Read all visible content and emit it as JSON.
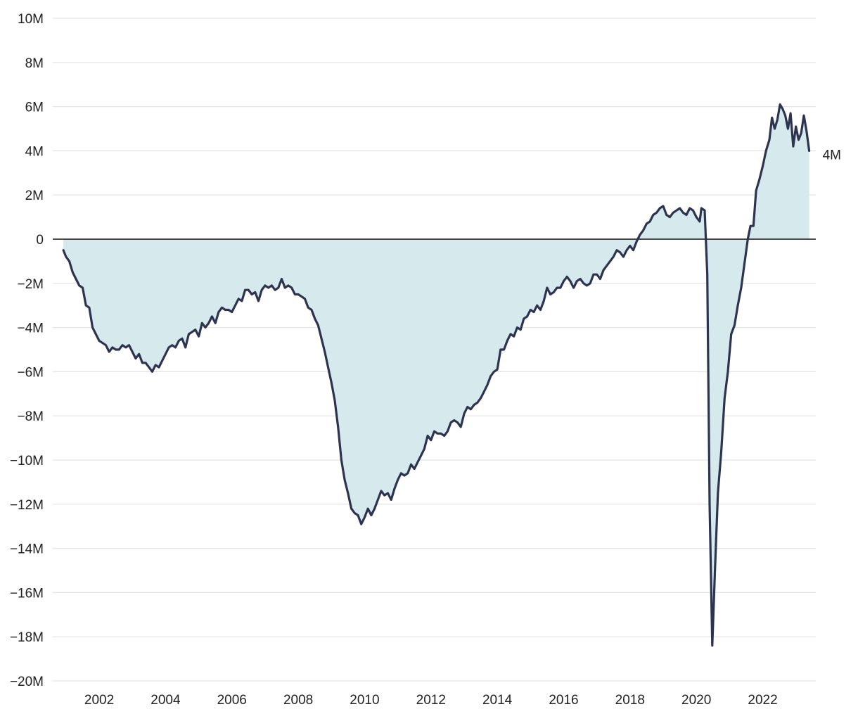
{
  "chart_data": {
    "type": "area",
    "title": "",
    "xlabel": "",
    "ylabel": "",
    "xlim": [
      2000.6,
      2023.6
    ],
    "ylim": [
      -20,
      10
    ],
    "grid": true,
    "legend": "none",
    "y_ticks": [
      {
        "value": 10,
        "label": "10M"
      },
      {
        "value": 8,
        "label": "8M"
      },
      {
        "value": 6,
        "label": "6M"
      },
      {
        "value": 4,
        "label": "4M"
      },
      {
        "value": 2,
        "label": "2M"
      },
      {
        "value": 0,
        "label": "0"
      },
      {
        "value": -2,
        "label": "−2M"
      },
      {
        "value": -4,
        "label": "−4M"
      },
      {
        "value": -6,
        "label": "−6M"
      },
      {
        "value": -8,
        "label": "−8M"
      },
      {
        "value": -10,
        "label": "−10M"
      },
      {
        "value": -12,
        "label": "−12M"
      },
      {
        "value": -14,
        "label": "−14M"
      },
      {
        "value": -16,
        "label": "−16M"
      },
      {
        "value": -18,
        "label": "−18M"
      },
      {
        "value": -20,
        "label": "−20M"
      }
    ],
    "x_ticks": [
      {
        "value": 2002,
        "label": "2002"
      },
      {
        "value": 2004,
        "label": "2004"
      },
      {
        "value": 2006,
        "label": "2006"
      },
      {
        "value": 2008,
        "label": "2008"
      },
      {
        "value": 2010,
        "label": "2010"
      },
      {
        "value": 2012,
        "label": "2012"
      },
      {
        "value": 2014,
        "label": "2014"
      },
      {
        "value": 2016,
        "label": "2016"
      },
      {
        "value": 2018,
        "label": "2018"
      },
      {
        "value": 2020,
        "label": "2020"
      },
      {
        "value": 2022,
        "label": "2022"
      }
    ],
    "end_label": "4M",
    "colors": {
      "line": "#2d3450",
      "fill": "#d6e9ec",
      "grid": "#e3e3e3",
      "zero_line": "#111111"
    },
    "series": [
      {
        "points": [
          [
            2000.92,
            -0.5
          ],
          [
            2001.0,
            -0.8
          ],
          [
            2001.1,
            -1.0
          ],
          [
            2001.2,
            -1.5
          ],
          [
            2001.3,
            -1.8
          ],
          [
            2001.4,
            -2.1
          ],
          [
            2001.5,
            -2.2
          ],
          [
            2001.6,
            -3.0
          ],
          [
            2001.7,
            -3.1
          ],
          [
            2001.8,
            -4.0
          ],
          [
            2001.9,
            -4.3
          ],
          [
            2002.0,
            -4.6
          ],
          [
            2002.1,
            -4.7
          ],
          [
            2002.2,
            -4.8
          ],
          [
            2002.3,
            -5.1
          ],
          [
            2002.4,
            -4.9
          ],
          [
            2002.5,
            -5.0
          ],
          [
            2002.6,
            -5.0
          ],
          [
            2002.7,
            -4.8
          ],
          [
            2002.8,
            -4.9
          ],
          [
            2002.9,
            -4.8
          ],
          [
            2003.0,
            -5.1
          ],
          [
            2003.1,
            -5.4
          ],
          [
            2003.2,
            -5.2
          ],
          [
            2003.3,
            -5.6
          ],
          [
            2003.4,
            -5.6
          ],
          [
            2003.5,
            -5.8
          ],
          [
            2003.6,
            -6.0
          ],
          [
            2003.7,
            -5.7
          ],
          [
            2003.8,
            -5.8
          ],
          [
            2003.9,
            -5.5
          ],
          [
            2004.0,
            -5.2
          ],
          [
            2004.1,
            -4.9
          ],
          [
            2004.2,
            -4.8
          ],
          [
            2004.3,
            -4.9
          ],
          [
            2004.4,
            -4.6
          ],
          [
            2004.5,
            -4.5
          ],
          [
            2004.6,
            -4.9
          ],
          [
            2004.7,
            -4.3
          ],
          [
            2004.8,
            -4.2
          ],
          [
            2004.9,
            -4.1
          ],
          [
            2005.0,
            -4.4
          ],
          [
            2005.1,
            -3.8
          ],
          [
            2005.2,
            -4.0
          ],
          [
            2005.3,
            -3.8
          ],
          [
            2005.4,
            -3.5
          ],
          [
            2005.5,
            -3.8
          ],
          [
            2005.6,
            -3.3
          ],
          [
            2005.7,
            -3.1
          ],
          [
            2005.8,
            -3.2
          ],
          [
            2005.9,
            -3.2
          ],
          [
            2006.0,
            -3.3
          ],
          [
            2006.1,
            -3.0
          ],
          [
            2006.2,
            -2.7
          ],
          [
            2006.3,
            -2.8
          ],
          [
            2006.4,
            -2.3
          ],
          [
            2006.5,
            -2.3
          ],
          [
            2006.6,
            -2.5
          ],
          [
            2006.7,
            -2.4
          ],
          [
            2006.8,
            -2.8
          ],
          [
            2006.9,
            -2.3
          ],
          [
            2007.0,
            -2.1
          ],
          [
            2007.1,
            -2.2
          ],
          [
            2007.2,
            -2.1
          ],
          [
            2007.3,
            -2.3
          ],
          [
            2007.4,
            -2.2
          ],
          [
            2007.5,
            -1.8
          ],
          [
            2007.6,
            -2.2
          ],
          [
            2007.7,
            -2.1
          ],
          [
            2007.8,
            -2.2
          ],
          [
            2007.9,
            -2.5
          ],
          [
            2008.0,
            -2.5
          ],
          [
            2008.1,
            -2.6
          ],
          [
            2008.2,
            -2.7
          ],
          [
            2008.3,
            -3.1
          ],
          [
            2008.4,
            -3.2
          ],
          [
            2008.5,
            -3.6
          ],
          [
            2008.6,
            -3.9
          ],
          [
            2008.7,
            -4.5
          ],
          [
            2008.8,
            -5.1
          ],
          [
            2008.9,
            -5.8
          ],
          [
            2009.0,
            -6.5
          ],
          [
            2009.1,
            -7.3
          ],
          [
            2009.2,
            -8.5
          ],
          [
            2009.3,
            -10.0
          ],
          [
            2009.4,
            -10.9
          ],
          [
            2009.5,
            -11.5
          ],
          [
            2009.6,
            -12.2
          ],
          [
            2009.7,
            -12.4
          ],
          [
            2009.8,
            -12.5
          ],
          [
            2009.9,
            -12.9
          ],
          [
            2010.0,
            -12.6
          ],
          [
            2010.1,
            -12.2
          ],
          [
            2010.2,
            -12.5
          ],
          [
            2010.3,
            -12.2
          ],
          [
            2010.4,
            -11.8
          ],
          [
            2010.5,
            -11.4
          ],
          [
            2010.6,
            -11.6
          ],
          [
            2010.7,
            -11.5
          ],
          [
            2010.8,
            -11.8
          ],
          [
            2010.9,
            -11.3
          ],
          [
            2011.0,
            -10.9
          ],
          [
            2011.1,
            -10.6
          ],
          [
            2011.2,
            -10.7
          ],
          [
            2011.3,
            -10.6
          ],
          [
            2011.4,
            -10.2
          ],
          [
            2011.5,
            -10.4
          ],
          [
            2011.6,
            -10.1
          ],
          [
            2011.7,
            -9.8
          ],
          [
            2011.8,
            -9.5
          ],
          [
            2011.9,
            -8.9
          ],
          [
            2012.0,
            -9.1
          ],
          [
            2012.1,
            -8.7
          ],
          [
            2012.2,
            -8.8
          ],
          [
            2012.3,
            -8.8
          ],
          [
            2012.4,
            -8.9
          ],
          [
            2012.5,
            -8.7
          ],
          [
            2012.6,
            -8.3
          ],
          [
            2012.7,
            -8.2
          ],
          [
            2012.8,
            -8.3
          ],
          [
            2012.9,
            -8.5
          ],
          [
            2013.0,
            -7.9
          ],
          [
            2013.1,
            -7.6
          ],
          [
            2013.2,
            -7.7
          ],
          [
            2013.3,
            -7.5
          ],
          [
            2013.4,
            -7.4
          ],
          [
            2013.5,
            -7.2
          ],
          [
            2013.6,
            -6.9
          ],
          [
            2013.7,
            -6.6
          ],
          [
            2013.8,
            -6.2
          ],
          [
            2013.9,
            -6.0
          ],
          [
            2014.0,
            -5.9
          ],
          [
            2014.1,
            -5.0
          ],
          [
            2014.2,
            -5.0
          ],
          [
            2014.3,
            -4.6
          ],
          [
            2014.4,
            -4.3
          ],
          [
            2014.5,
            -4.4
          ],
          [
            2014.6,
            -4.0
          ],
          [
            2014.7,
            -4.1
          ],
          [
            2014.8,
            -3.6
          ],
          [
            2014.9,
            -3.5
          ],
          [
            2015.0,
            -3.2
          ],
          [
            2015.1,
            -3.3
          ],
          [
            2015.2,
            -3.0
          ],
          [
            2015.3,
            -3.2
          ],
          [
            2015.4,
            -2.8
          ],
          [
            2015.5,
            -2.2
          ],
          [
            2015.6,
            -2.5
          ],
          [
            2015.7,
            -2.4
          ],
          [
            2015.8,
            -2.2
          ],
          [
            2015.9,
            -2.2
          ],
          [
            2016.0,
            -1.9
          ],
          [
            2016.1,
            -1.7
          ],
          [
            2016.2,
            -1.9
          ],
          [
            2016.3,
            -2.2
          ],
          [
            2016.4,
            -1.9
          ],
          [
            2016.5,
            -1.8
          ],
          [
            2016.6,
            -2.0
          ],
          [
            2016.7,
            -2.1
          ],
          [
            2016.8,
            -2.0
          ],
          [
            2016.9,
            -1.6
          ],
          [
            2017.0,
            -1.6
          ],
          [
            2017.1,
            -1.8
          ],
          [
            2017.2,
            -1.4
          ],
          [
            2017.3,
            -1.2
          ],
          [
            2017.4,
            -1.0
          ],
          [
            2017.5,
            -0.8
          ],
          [
            2017.6,
            -0.5
          ],
          [
            2017.7,
            -0.6
          ],
          [
            2017.8,
            -0.8
          ],
          [
            2017.9,
            -0.5
          ],
          [
            2018.0,
            -0.3
          ],
          [
            2018.1,
            -0.5
          ],
          [
            2018.2,
            -0.1
          ],
          [
            2018.3,
            0.2
          ],
          [
            2018.4,
            0.4
          ],
          [
            2018.5,
            0.7
          ],
          [
            2018.6,
            0.8
          ],
          [
            2018.7,
            1.1
          ],
          [
            2018.8,
            1.2
          ],
          [
            2018.9,
            1.4
          ],
          [
            2019.0,
            1.5
          ],
          [
            2019.1,
            1.1
          ],
          [
            2019.2,
            1.0
          ],
          [
            2019.3,
            1.2
          ],
          [
            2019.4,
            1.3
          ],
          [
            2019.5,
            1.4
          ],
          [
            2019.6,
            1.2
          ],
          [
            2019.7,
            1.1
          ],
          [
            2019.8,
            1.4
          ],
          [
            2019.9,
            1.3
          ],
          [
            2020.0,
            1.0
          ],
          [
            2020.1,
            0.8
          ],
          [
            2020.15,
            1.4
          ],
          [
            2020.25,
            1.3
          ],
          [
            2020.33,
            -1.6
          ],
          [
            2020.4,
            -12.0
          ],
          [
            2020.48,
            -18.4
          ],
          [
            2020.56,
            -15.0
          ],
          [
            2020.65,
            -11.5
          ],
          [
            2020.75,
            -9.6
          ],
          [
            2020.85,
            -7.2
          ],
          [
            2020.95,
            -6.0
          ],
          [
            2021.05,
            -4.3
          ],
          [
            2021.15,
            -3.9
          ],
          [
            2021.25,
            -3.0
          ],
          [
            2021.35,
            -2.2
          ],
          [
            2021.45,
            -1.1
          ],
          [
            2021.55,
            0.0
          ],
          [
            2021.63,
            0.6
          ],
          [
            2021.72,
            0.6
          ],
          [
            2021.8,
            2.2
          ],
          [
            2021.9,
            2.7
          ],
          [
            2022.0,
            3.3
          ],
          [
            2022.1,
            4.0
          ],
          [
            2022.2,
            4.5
          ],
          [
            2022.28,
            5.5
          ],
          [
            2022.36,
            5.0
          ],
          [
            2022.44,
            5.4
          ],
          [
            2022.52,
            6.1
          ],
          [
            2022.6,
            5.9
          ],
          [
            2022.68,
            5.6
          ],
          [
            2022.76,
            5.0
          ],
          [
            2022.84,
            5.7
          ],
          [
            2022.92,
            4.2
          ],
          [
            2023.0,
            5.1
          ],
          [
            2023.08,
            4.5
          ],
          [
            2023.16,
            4.8
          ],
          [
            2023.24,
            5.6
          ],
          [
            2023.32,
            4.9
          ],
          [
            2023.4,
            4.0
          ]
        ]
      }
    ]
  }
}
